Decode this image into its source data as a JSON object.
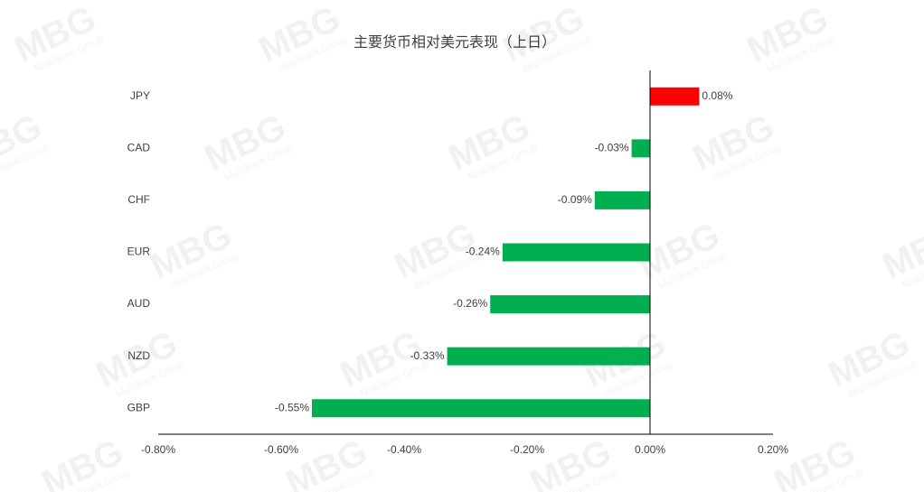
{
  "chart_data": {
    "type": "hbar",
    "title": "主要货币相对美元表现（上日）",
    "categories": [
      "JPY",
      "CAD",
      "CHF",
      "EUR",
      "AUD",
      "NZD",
      "GBP"
    ],
    "values": [
      0.08,
      -0.03,
      -0.09,
      -0.24,
      -0.26,
      -0.33,
      -0.55
    ],
    "value_labels": [
      "0.08%",
      "-0.03%",
      "-0.09%",
      "-0.24%",
      "-0.26%",
      "-0.33%",
      "-0.55%"
    ],
    "colors": [
      "#ff0000",
      "#00b050",
      "#00b050",
      "#00b050",
      "#00b050",
      "#00b050",
      "#00b050"
    ],
    "xlim": [
      -0.8,
      0.2
    ],
    "xticks": [
      {
        "value": -0.8,
        "label": "-0.80%"
      },
      {
        "value": -0.6,
        "label": "-0.60%"
      },
      {
        "value": -0.4,
        "label": "-0.40%"
      },
      {
        "value": -0.2,
        "label": "-0.20%"
      },
      {
        "value": 0,
        "label": "0.00%"
      },
      {
        "value": 0.2,
        "label": "0.20%"
      }
    ],
    "grid": false
  },
  "watermark": {
    "logo": "MBG",
    "text": "MultiBank Group"
  }
}
